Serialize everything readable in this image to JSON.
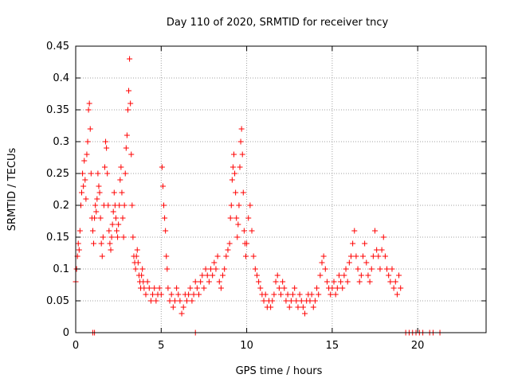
{
  "chart_data": {
    "type": "scatter",
    "title": "Day 110 of 2020, SRMTID for receiver tncy",
    "xlabel": "GPS time / hours",
    "ylabel": "SRMTID / TECUs",
    "xlim": [
      0,
      24
    ],
    "ylim": [
      0,
      0.45
    ],
    "xticks": [
      0,
      5,
      10,
      15,
      20
    ],
    "yticks": [
      0,
      0.05,
      0.1,
      0.15,
      0.2,
      0.25,
      0.3,
      0.35,
      0.4,
      0.45
    ],
    "ytick_labels": [
      "0",
      "0.05",
      "0.1",
      "0.15",
      "0.2",
      "0.25",
      "0.3",
      "0.35",
      "0.4",
      "0.45"
    ],
    "grid": true,
    "marker": "+",
    "color": "#ff0000",
    "series": [
      {
        "points": [
          [
            0.0,
            0.08
          ],
          [
            0.05,
            0.1
          ],
          [
            0.1,
            0.12
          ],
          [
            0.15,
            0.14
          ],
          [
            0.2,
            0.13
          ],
          [
            0.25,
            0.16
          ],
          [
            0.3,
            0.2
          ],
          [
            0.35,
            0.22
          ],
          [
            0.4,
            0.25
          ],
          [
            0.45,
            0.23
          ],
          [
            0.5,
            0.27
          ],
          [
            0.55,
            0.24
          ],
          [
            0.6,
            0.21
          ],
          [
            0.65,
            0.28
          ],
          [
            0.7,
            0.3
          ],
          [
            0.75,
            0.35
          ],
          [
            0.8,
            0.36
          ],
          [
            0.85,
            0.32
          ],
          [
            0.9,
            0.25
          ],
          [
            0.95,
            0.18
          ],
          [
            1.0,
            0.16
          ],
          [
            1.05,
            0.14
          ],
          [
            1.1,
            0.18
          ],
          [
            1.15,
            0.2
          ],
          [
            1.2,
            0.19
          ],
          [
            1.25,
            0.21
          ],
          [
            1.3,
            0.25
          ],
          [
            1.35,
            0.23
          ],
          [
            1.4,
            0.22
          ],
          [
            1.45,
            0.18
          ],
          [
            1.5,
            0.14
          ],
          [
            1.55,
            0.12
          ],
          [
            1.6,
            0.15
          ],
          [
            1.65,
            0.2
          ],
          [
            1.7,
            0.26
          ],
          [
            1.75,
            0.3
          ],
          [
            1.8,
            0.29
          ],
          [
            1.85,
            0.25
          ],
          [
            1.9,
            0.2
          ],
          [
            1.95,
            0.16
          ],
          [
            2.0,
            0.14
          ],
          [
            2.05,
            0.13
          ],
          [
            2.1,
            0.15
          ],
          [
            2.15,
            0.17
          ],
          [
            2.2,
            0.19
          ],
          [
            2.25,
            0.22
          ],
          [
            2.3,
            0.2
          ],
          [
            2.35,
            0.18
          ],
          [
            2.4,
            0.16
          ],
          [
            2.45,
            0.15
          ],
          [
            2.5,
            0.17
          ],
          [
            2.55,
            0.2
          ],
          [
            2.6,
            0.24
          ],
          [
            2.65,
            0.26
          ],
          [
            2.7,
            0.22
          ],
          [
            2.75,
            0.18
          ],
          [
            2.8,
            0.15
          ],
          [
            2.85,
            0.2
          ],
          [
            2.9,
            0.25
          ],
          [
            2.95,
            0.29
          ],
          [
            3.0,
            0.31
          ],
          [
            3.05,
            0.35
          ],
          [
            3.1,
            0.38
          ],
          [
            3.15,
            0.43
          ],
          [
            3.2,
            0.36
          ],
          [
            3.25,
            0.28
          ],
          [
            3.3,
            0.2
          ],
          [
            3.35,
            0.15
          ],
          [
            3.4,
            0.12
          ],
          [
            3.45,
            0.11
          ],
          [
            3.5,
            0.1
          ],
          [
            3.55,
            0.12
          ],
          [
            3.6,
            0.13
          ],
          [
            3.65,
            0.11
          ],
          [
            3.7,
            0.09
          ],
          [
            3.75,
            0.08
          ],
          [
            3.8,
            0.07
          ],
          [
            3.85,
            0.09
          ],
          [
            3.9,
            0.1
          ],
          [
            3.95,
            0.08
          ],
          [
            4.0,
            0.07
          ],
          [
            4.1,
            0.06
          ],
          [
            4.2,
            0.08
          ],
          [
            4.3,
            0.07
          ],
          [
            4.4,
            0.05
          ],
          [
            4.5,
            0.06
          ],
          [
            4.6,
            0.07
          ],
          [
            4.7,
            0.05
          ],
          [
            4.8,
            0.06
          ],
          [
            4.9,
            0.07
          ],
          [
            5.0,
            0.06
          ],
          [
            5.05,
            0.26
          ],
          [
            5.1,
            0.23
          ],
          [
            5.15,
            0.2
          ],
          [
            5.2,
            0.18
          ],
          [
            5.25,
            0.16
          ],
          [
            5.3,
            0.12
          ],
          [
            5.35,
            0.1
          ],
          [
            5.4,
            0.07
          ],
          [
            5.5,
            0.05
          ],
          [
            5.6,
            0.06
          ],
          [
            5.7,
            0.04
          ],
          [
            5.8,
            0.05
          ],
          [
            5.9,
            0.07
          ],
          [
            6.0,
            0.06
          ],
          [
            6.1,
            0.05
          ],
          [
            6.2,
            0.03
          ],
          [
            6.3,
            0.04
          ],
          [
            6.4,
            0.06
          ],
          [
            6.5,
            0.05
          ],
          [
            6.6,
            0.06
          ],
          [
            6.7,
            0.07
          ],
          [
            6.8,
            0.05
          ],
          [
            6.9,
            0.06
          ],
          [
            7.0,
            0.08
          ],
          [
            7.1,
            0.07
          ],
          [
            7.2,
            0.06
          ],
          [
            7.3,
            0.08
          ],
          [
            7.4,
            0.09
          ],
          [
            7.5,
            0.07
          ],
          [
            7.6,
            0.1
          ],
          [
            7.7,
            0.09
          ],
          [
            7.8,
            0.08
          ],
          [
            7.9,
            0.1
          ],
          [
            8.0,
            0.09
          ],
          [
            8.1,
            0.11
          ],
          [
            8.2,
            0.1
          ],
          [
            8.3,
            0.12
          ],
          [
            8.4,
            0.08
          ],
          [
            8.5,
            0.07
          ],
          [
            8.6,
            0.09
          ],
          [
            8.7,
            0.1
          ],
          [
            8.8,
            0.12
          ],
          [
            8.9,
            0.13
          ],
          [
            9.0,
            0.14
          ],
          [
            9.05,
            0.18
          ],
          [
            9.1,
            0.2
          ],
          [
            9.15,
            0.24
          ],
          [
            9.2,
            0.26
          ],
          [
            9.25,
            0.28
          ],
          [
            9.3,
            0.25
          ],
          [
            9.35,
            0.22
          ],
          [
            9.4,
            0.18
          ],
          [
            9.45,
            0.15
          ],
          [
            9.5,
            0.17
          ],
          [
            9.55,
            0.2
          ],
          [
            9.6,
            0.26
          ],
          [
            9.65,
            0.3
          ],
          [
            9.7,
            0.32
          ],
          [
            9.75,
            0.28
          ],
          [
            9.8,
            0.22
          ],
          [
            9.85,
            0.16
          ],
          [
            9.9,
            0.14
          ],
          [
            9.95,
            0.12
          ],
          [
            10.0,
            0.14
          ],
          [
            10.1,
            0.18
          ],
          [
            10.2,
            0.2
          ],
          [
            10.3,
            0.16
          ],
          [
            10.4,
            0.12
          ],
          [
            10.5,
            0.1
          ],
          [
            10.6,
            0.09
          ],
          [
            10.7,
            0.08
          ],
          [
            10.8,
            0.07
          ],
          [
            10.9,
            0.06
          ],
          [
            11.0,
            0.05
          ],
          [
            11.1,
            0.06
          ],
          [
            11.2,
            0.04
          ],
          [
            11.3,
            0.05
          ],
          [
            11.4,
            0.04
          ],
          [
            11.5,
            0.05
          ],
          [
            11.6,
            0.06
          ],
          [
            11.7,
            0.08
          ],
          [
            11.8,
            0.09
          ],
          [
            11.9,
            0.07
          ],
          [
            12.0,
            0.06
          ],
          [
            12.1,
            0.08
          ],
          [
            12.2,
            0.07
          ],
          [
            12.3,
            0.05
          ],
          [
            12.4,
            0.06
          ],
          [
            12.5,
            0.04
          ],
          [
            12.6,
            0.05
          ],
          [
            12.7,
            0.06
          ],
          [
            12.8,
            0.07
          ],
          [
            12.9,
            0.05
          ],
          [
            13.0,
            0.04
          ],
          [
            13.1,
            0.06
          ],
          [
            13.2,
            0.05
          ],
          [
            13.3,
            0.04
          ],
          [
            13.4,
            0.03
          ],
          [
            13.5,
            0.05
          ],
          [
            13.6,
            0.06
          ],
          [
            13.7,
            0.05
          ],
          [
            13.8,
            0.06
          ],
          [
            13.9,
            0.04
          ],
          [
            14.0,
            0.05
          ],
          [
            14.1,
            0.07
          ],
          [
            14.2,
            0.06
          ],
          [
            14.3,
            0.09
          ],
          [
            14.4,
            0.11
          ],
          [
            14.5,
            0.12
          ],
          [
            14.6,
            0.1
          ],
          [
            14.7,
            0.08
          ],
          [
            14.8,
            0.07
          ],
          [
            14.9,
            0.06
          ],
          [
            15.0,
            0.07
          ],
          [
            15.1,
            0.08
          ],
          [
            15.2,
            0.06
          ],
          [
            15.3,
            0.07
          ],
          [
            15.4,
            0.09
          ],
          [
            15.5,
            0.08
          ],
          [
            15.6,
            0.07
          ],
          [
            15.7,
            0.09
          ],
          [
            15.8,
            0.1
          ],
          [
            15.9,
            0.08
          ],
          [
            16.0,
            0.11
          ],
          [
            16.1,
            0.12
          ],
          [
            16.2,
            0.14
          ],
          [
            16.3,
            0.16
          ],
          [
            16.4,
            0.12
          ],
          [
            16.5,
            0.1
          ],
          [
            16.6,
            0.08
          ],
          [
            16.7,
            0.09
          ],
          [
            16.8,
            0.12
          ],
          [
            16.9,
            0.14
          ],
          [
            17.0,
            0.11
          ],
          [
            17.1,
            0.09
          ],
          [
            17.2,
            0.08
          ],
          [
            17.3,
            0.1
          ],
          [
            17.4,
            0.12
          ],
          [
            17.5,
            0.16
          ],
          [
            17.6,
            0.13
          ],
          [
            17.7,
            0.12
          ],
          [
            17.8,
            0.1
          ],
          [
            17.9,
            0.13
          ],
          [
            18.0,
            0.15
          ],
          [
            18.1,
            0.12
          ],
          [
            18.2,
            0.1
          ],
          [
            18.3,
            0.09
          ],
          [
            18.4,
            0.08
          ],
          [
            18.5,
            0.1
          ],
          [
            18.6,
            0.07
          ],
          [
            18.7,
            0.08
          ],
          [
            18.8,
            0.06
          ],
          [
            18.9,
            0.09
          ],
          [
            19.0,
            0.07
          ],
          [
            1.0,
            0.0
          ],
          [
            1.1,
            0.0
          ],
          [
            7.0,
            0.0
          ],
          [
            19.3,
            0.0
          ],
          [
            19.5,
            0.0
          ],
          [
            19.7,
            0.0
          ],
          [
            19.9,
            0.0
          ],
          [
            20.1,
            0.0
          ],
          [
            20.3,
            0.0
          ],
          [
            20.7,
            0.0
          ],
          [
            20.9,
            0.0
          ],
          [
            21.3,
            0.0
          ]
        ]
      }
    ]
  }
}
